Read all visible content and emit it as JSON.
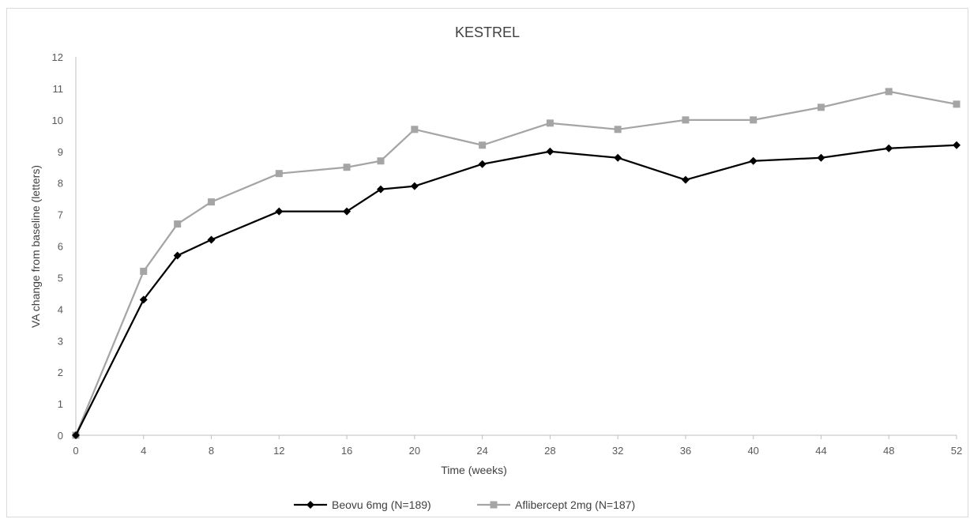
{
  "chart_data": {
    "type": "line",
    "title": "KESTREL",
    "xlabel": "Time (weeks)",
    "ylabel": "VA change from baseline (letters)",
    "x_ticks": [
      0,
      4,
      8,
      12,
      16,
      20,
      24,
      28,
      32,
      36,
      40,
      44,
      48,
      52
    ],
    "y_ticks": [
      0,
      1,
      2,
      3,
      4,
      5,
      6,
      7,
      8,
      9,
      10,
      11,
      12
    ],
    "xlim": [
      0,
      52
    ],
    "ylim": [
      0,
      12
    ],
    "grid": false,
    "legend_position": "bottom",
    "series": [
      {
        "name": "Beovu 6mg (N=189)",
        "color": "#000000",
        "marker": "diamond",
        "x": [
          0,
          4,
          6,
          8,
          12,
          16,
          18,
          20,
          24,
          28,
          32,
          36,
          40,
          44,
          48,
          52
        ],
        "y": [
          0,
          4.3,
          5.7,
          6.2,
          7.1,
          7.1,
          7.8,
          7.9,
          8.6,
          9.0,
          8.8,
          8.1,
          8.7,
          8.8,
          9.1,
          9.2
        ]
      },
      {
        "name": "Aflibercept 2mg (N=187)",
        "color": "#a5a5a5",
        "marker": "square",
        "x": [
          0,
          4,
          6,
          8,
          12,
          16,
          18,
          20,
          24,
          28,
          32,
          36,
          40,
          44,
          48,
          52
        ],
        "y": [
          0,
          5.2,
          6.7,
          7.4,
          8.3,
          8.5,
          8.7,
          9.7,
          9.2,
          9.9,
          9.7,
          10.0,
          10.0,
          10.4,
          10.9,
          10.5
        ]
      }
    ]
  }
}
